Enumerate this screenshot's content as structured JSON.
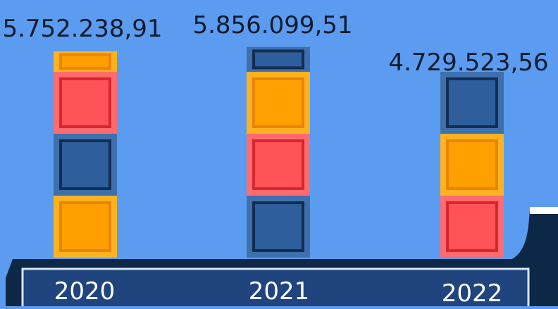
{
  "chart_data": {
    "type": "bar",
    "stacked": true,
    "categories": [
      "2020",
      "2021",
      "2022"
    ],
    "totals": [
      "5.752.238,91",
      "5.856.099,51",
      "4.729.523,56"
    ],
    "total_values": [
      5752238.91,
      5856099.51,
      4729523.56
    ],
    "stacks": [
      [
        "orange",
        "navy",
        "red",
        "orange"
      ],
      [
        "navy",
        "red",
        "orange",
        "navy"
      ],
      [
        "red",
        "orange",
        "navy"
      ]
    ],
    "block_fractions": [
      [
        1,
        1,
        1,
        0.33
      ],
      [
        1,
        1,
        1,
        0.4
      ],
      [
        1,
        1,
        1
      ]
    ],
    "grid": false,
    "legend": "none"
  },
  "colors": {
    "background": "#5b9cf0",
    "base_dark": "#0d2847",
    "label_band": "#1f447e",
    "label_border": "#dbe6f5",
    "ledge": "#ffffff",
    "text_dark": "#0f1a2c",
    "text_light": "#ffffff",
    "blocks": {
      "orange": {
        "fill": "#ff9f00",
        "edge": "#ffb21f",
        "inner": "#e8860c"
      },
      "red": {
        "fill": "#ff5357",
        "edge": "#ff6b6e",
        "inner": "#d8262e"
      },
      "navy": {
        "fill": "#2e5f9c",
        "edge": "#3d70ad",
        "inner": "#142d52"
      }
    }
  }
}
